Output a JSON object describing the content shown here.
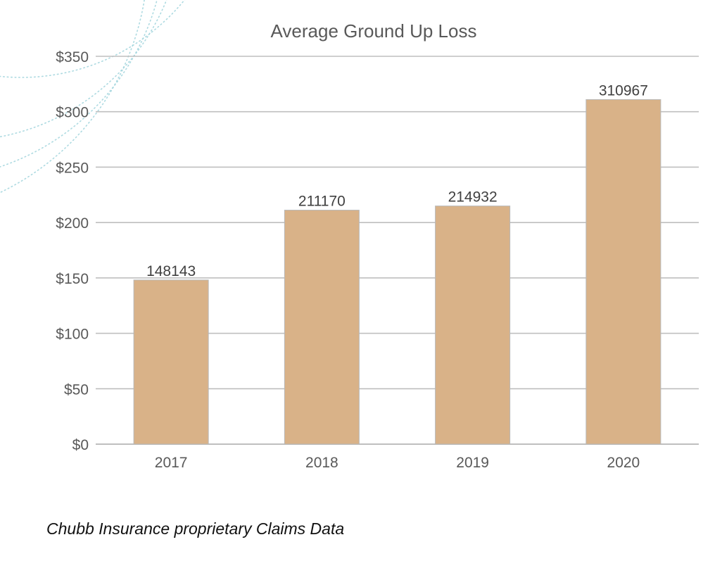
{
  "chart_data": {
    "type": "bar",
    "title": "Average Ground Up Loss",
    "categories": [
      "2017",
      "2018",
      "2019",
      "2020"
    ],
    "values": [
      148143,
      211170,
      214932,
      310967
    ],
    "data_labels": [
      "148143",
      "211170",
      "214932",
      "310967"
    ],
    "ylim": [
      0,
      350
    ],
    "value_scale": 1000,
    "y_ticks": [
      0,
      50,
      100,
      150,
      200,
      250,
      300,
      350
    ],
    "y_tick_labels": [
      "$0",
      "$50",
      "$100",
      "$150",
      "$200",
      "$250",
      "$300",
      "$350"
    ],
    "xlabel": "",
    "ylabel": "",
    "grid": true,
    "legend": "none",
    "bar_color": "#D9B288",
    "bar_stroke": "#B8B8B8",
    "grid_color": "#BFBFBF",
    "decoration_color": "#9FD3DC"
  },
  "caption": "Chubb Insurance proprietary Claims Data"
}
